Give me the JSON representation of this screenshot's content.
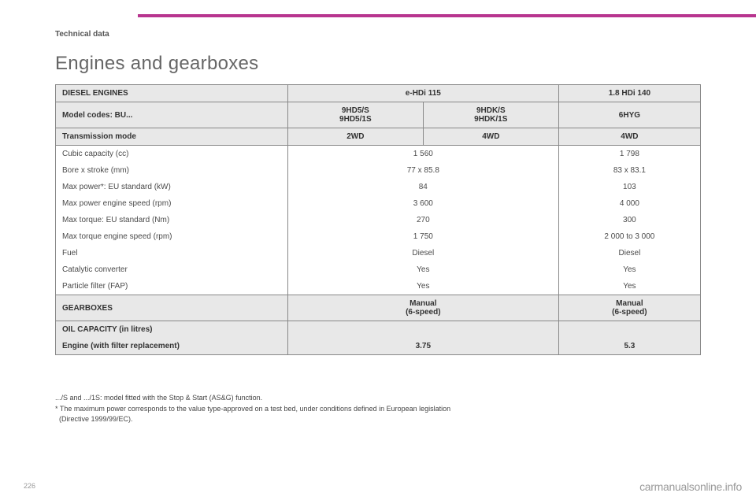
{
  "section_label": "Technical data",
  "title": "Engines and gearboxes",
  "columns": {
    "widths_pct": [
      36,
      21,
      21,
      22
    ]
  },
  "header_rows": [
    {
      "label": "DIESEL ENGINES",
      "cells": [
        {
          "text": "e-HDi 115",
          "span": 2
        },
        {
          "text": "1.8 HDi 140",
          "span": 1
        }
      ]
    },
    {
      "label": "Model codes: BU...",
      "cells": [
        {
          "text": "9HD5/S\n9HD5/1S",
          "span": 1
        },
        {
          "text": "9HDK/S\n9HDK/1S",
          "span": 1
        },
        {
          "text": "6HYG",
          "span": 1
        }
      ]
    },
    {
      "label": "Transmission mode",
      "cells": [
        {
          "text": "2WD",
          "span": 1
        },
        {
          "text": "4WD",
          "span": 1
        },
        {
          "text": "4WD",
          "span": 1
        }
      ]
    }
  ],
  "body_rows": [
    {
      "label": "Cubic capacity (cc)",
      "cells": [
        {
          "text": "1 560",
          "span": 2
        },
        {
          "text": "1 798",
          "span": 1
        }
      ]
    },
    {
      "label": "Bore x stroke (mm)",
      "cells": [
        {
          "text": "77 x 85.8",
          "span": 2
        },
        {
          "text": "83 x 83.1",
          "span": 1
        }
      ]
    },
    {
      "label": "Max power*: EU standard (kW)",
      "cells": [
        {
          "text": "84",
          "span": 2
        },
        {
          "text": "103",
          "span": 1
        }
      ]
    },
    {
      "label": "Max power engine speed (rpm)",
      "cells": [
        {
          "text": "3 600",
          "span": 2
        },
        {
          "text": "4 000",
          "span": 1
        }
      ]
    },
    {
      "label": "Max torque: EU standard (Nm)",
      "cells": [
        {
          "text": "270",
          "span": 2
        },
        {
          "text": "300",
          "span": 1
        }
      ]
    },
    {
      "label": "Max torque engine speed (rpm)",
      "cells": [
        {
          "text": "1 750",
          "span": 2
        },
        {
          "text": "2 000 to 3 000",
          "span": 1
        }
      ]
    },
    {
      "label": "Fuel",
      "cells": [
        {
          "text": "Diesel",
          "span": 2
        },
        {
          "text": "Diesel",
          "span": 1
        }
      ]
    },
    {
      "label": "Catalytic converter",
      "cells": [
        {
          "text": "Yes",
          "span": 2
        },
        {
          "text": "Yes",
          "span": 1
        }
      ]
    },
    {
      "label": "Particle filter (FAP)",
      "cells": [
        {
          "text": "Yes",
          "span": 2
        },
        {
          "text": "Yes",
          "span": 1
        }
      ]
    }
  ],
  "gearbox_row": {
    "label": "GEARBOXES",
    "cells": [
      {
        "text": "Manual\n(6-speed)",
        "span": 2
      },
      {
        "text": "Manual\n(6-speed)",
        "span": 1
      }
    ]
  },
  "oil_rows": {
    "header": "OIL CAPACITY (in litres)",
    "row": {
      "label": "Engine (with filter replacement)",
      "cells": [
        {
          "text": "3.75",
          "span": 2
        },
        {
          "text": "5.3",
          "span": 1
        }
      ]
    }
  },
  "footnotes": [
    ".../S and .../1S: model fitted with the Stop & Start (AS&G) function.",
    "* The maximum power corresponds to the value type-approved on a test bed, under conditions defined in European legislation",
    "  (Directive 1999/99/EC)."
  ],
  "page_number": "226",
  "watermark": "carmanualsonline.info",
  "colors": {
    "accent": "#b8358f",
    "header_bg": "#e8e8e8",
    "border": "#888888",
    "text": "#4a4a4a",
    "watermark": "#9a9a9a"
  },
  "typography": {
    "title_fontsize": 24,
    "body_fontsize": 10,
    "footnote_fontsize": 9
  }
}
